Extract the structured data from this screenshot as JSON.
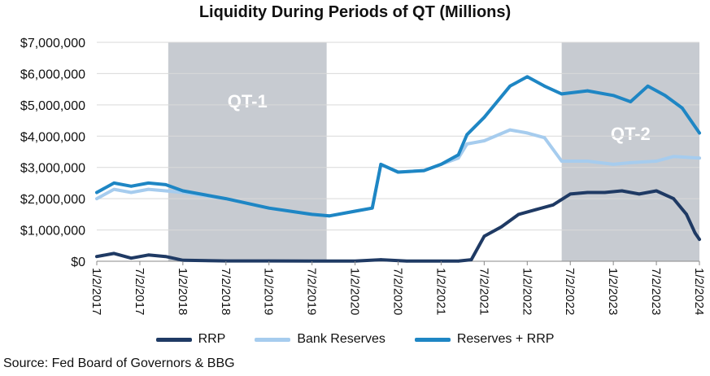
{
  "chart_data": {
    "type": "line",
    "title": "Liquidity During Periods of QT (Millions)",
    "source": "Source: Fed Board of Governors & BBG",
    "ylim": [
      0,
      7000000
    ],
    "y_ticks": [
      "$0",
      "$1,000,000",
      "$2,000,000",
      "$3,000,000",
      "$4,000,000",
      "$5,000,000",
      "$6,000,000",
      "$7,000,000"
    ],
    "x_ticks": [
      "1/2/2017",
      "7/2/2017",
      "1/2/2018",
      "7/2/2018",
      "1/2/2019",
      "7/2/2019",
      "1/2/2020",
      "7/2/2020",
      "1/2/2021",
      "7/2/2021",
      "1/2/2022",
      "7/2/2022",
      "1/2/2023",
      "7/2/2023",
      "1/2/2024"
    ],
    "grid": "horizontal",
    "legend_position": "bottom",
    "shaded_periods": [
      {
        "label": "QT-1",
        "start": 2017.83,
        "end": 2019.67
      },
      {
        "label": "QT-2",
        "start": 2022.4,
        "end": 2024.0
      }
    ],
    "series": [
      {
        "name": "RRP",
        "color": "#1f3a64",
        "x": [
          2017.0,
          2017.2,
          2017.4,
          2017.6,
          2017.8,
          2018.0,
          2018.5,
          2019.0,
          2019.5,
          2020.0,
          2020.3,
          2020.6,
          2021.0,
          2021.2,
          2021.35,
          2021.5,
          2021.7,
          2021.9,
          2022.1,
          2022.3,
          2022.5,
          2022.7,
          2022.9,
          2023.1,
          2023.3,
          2023.5,
          2023.7,
          2023.85,
          2023.95,
          2024.0
        ],
        "values": [
          150000,
          250000,
          100000,
          200000,
          150000,
          30000,
          10000,
          10000,
          5000,
          5000,
          50000,
          5000,
          5000,
          5000,
          50000,
          800000,
          1100000,
          1500000,
          1650000,
          1800000,
          2150000,
          2200000,
          2200000,
          2250000,
          2150000,
          2250000,
          2000000,
          1500000,
          900000,
          700000
        ]
      },
      {
        "name": "Bank Reserves",
        "color": "#a6ccee",
        "x": [
          2017.0,
          2017.2,
          2017.4,
          2017.6,
          2017.8,
          2018.0,
          2018.5,
          2019.0,
          2019.5,
          2019.7,
          2020.0,
          2020.2,
          2020.3,
          2020.5,
          2020.8,
          2021.0,
          2021.2,
          2021.3,
          2021.5,
          2021.8,
          2022.0,
          2022.2,
          2022.4,
          2022.7,
          2023.0,
          2023.2,
          2023.5,
          2023.7,
          2024.0
        ],
        "values": [
          2000000,
          2300000,
          2200000,
          2300000,
          2250000,
          2200000,
          2000000,
          1700000,
          1500000,
          1450000,
          1600000,
          1700000,
          3100000,
          2850000,
          2900000,
          3100000,
          3300000,
          3750000,
          3850000,
          4200000,
          4100000,
          3950000,
          3200000,
          3200000,
          3100000,
          3150000,
          3200000,
          3350000,
          3300000
        ]
      },
      {
        "name": "Reserves + RRP",
        "color": "#1e86c4",
        "x": [
          2017.0,
          2017.2,
          2017.4,
          2017.6,
          2017.8,
          2018.0,
          2018.5,
          2019.0,
          2019.5,
          2019.7,
          2020.0,
          2020.2,
          2020.3,
          2020.5,
          2020.8,
          2021.0,
          2021.2,
          2021.3,
          2021.5,
          2021.8,
          2022.0,
          2022.2,
          2022.4,
          2022.7,
          2023.0,
          2023.2,
          2023.4,
          2023.6,
          2023.8,
          2024.0
        ],
        "values": [
          2200000,
          2500000,
          2400000,
          2500000,
          2450000,
          2250000,
          2000000,
          1700000,
          1500000,
          1450000,
          1600000,
          1700000,
          3100000,
          2850000,
          2900000,
          3100000,
          3400000,
          4050000,
          4600000,
          5600000,
          5900000,
          5600000,
          5350000,
          5450000,
          5300000,
          5100000,
          5600000,
          5300000,
          4900000,
          4100000
        ]
      }
    ]
  }
}
